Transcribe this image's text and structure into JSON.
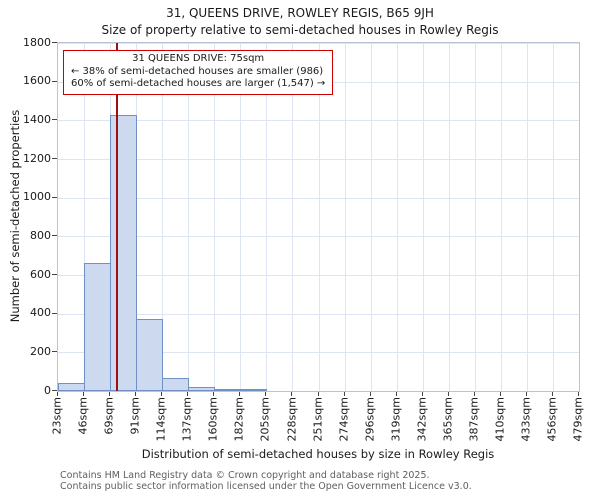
{
  "title": "31, QUEENS DRIVE, ROWLEY REGIS, B65 9JH",
  "subtitle": "Size of property relative to semi-detached houses in Rowley Regis",
  "footer": {
    "line1": "Contains HM Land Registry data © Crown copyright and database right 2025.",
    "line2": "Contains public sector information licensed under the Open Government Licence v3.0."
  },
  "chart_data": {
    "type": "bar",
    "title": "31, QUEENS DRIVE, ROWLEY REGIS, B65 9JH",
    "subtitle": "Size of property relative to semi-detached houses in Rowley Regis",
    "xlabel": "Distribution of semi-detached houses by size in Rowley Regis",
    "ylabel": "Number of semi-detached properties",
    "x_tick_labels": [
      "23sqm",
      "46sqm",
      "69sqm",
      "91sqm",
      "114sqm",
      "137sqm",
      "160sqm",
      "182sqm",
      "205sqm",
      "228sqm",
      "251sqm",
      "274sqm",
      "296sqm",
      "319sqm",
      "342sqm",
      "365sqm",
      "387sqm",
      "410sqm",
      "433sqm",
      "456sqm",
      "479sqm"
    ],
    "bin_edges_sqm": [
      23,
      46,
      69,
      91,
      114,
      137,
      160,
      182,
      205,
      228,
      251,
      274,
      296,
      319,
      342,
      365,
      387,
      410,
      433,
      456,
      479
    ],
    "values": [
      40,
      660,
      1430,
      370,
      65,
      20,
      12,
      8,
      0,
      0,
      0,
      0,
      0,
      0,
      0,
      0,
      0,
      0,
      0,
      0
    ],
    "y_ticks": [
      0,
      200,
      400,
      600,
      800,
      1000,
      1200,
      1400,
      1600,
      1800
    ],
    "ylim": [
      0,
      1800
    ],
    "x_range": [
      23,
      479
    ],
    "grid": true,
    "legend": "none",
    "marker": {
      "value_sqm": 75,
      "label": "31 QUEENS DRIVE",
      "pct_smaller": 38,
      "count_smaller": 986,
      "pct_larger": 60,
      "count_larger": 1547
    },
    "annotation": {
      "line1": "31 QUEENS DRIVE: 75sqm",
      "line2": "← 38% of semi-detached houses are smaller (986)",
      "line3": "60% of semi-detached houses are larger (1,547) →"
    },
    "colors": {
      "bar_fill": "#ccd9ef",
      "bar_edge": "#7091c4",
      "marker_line": "#991111",
      "annotation_border": "#cc0000",
      "grid": "#dde4f3"
    }
  }
}
